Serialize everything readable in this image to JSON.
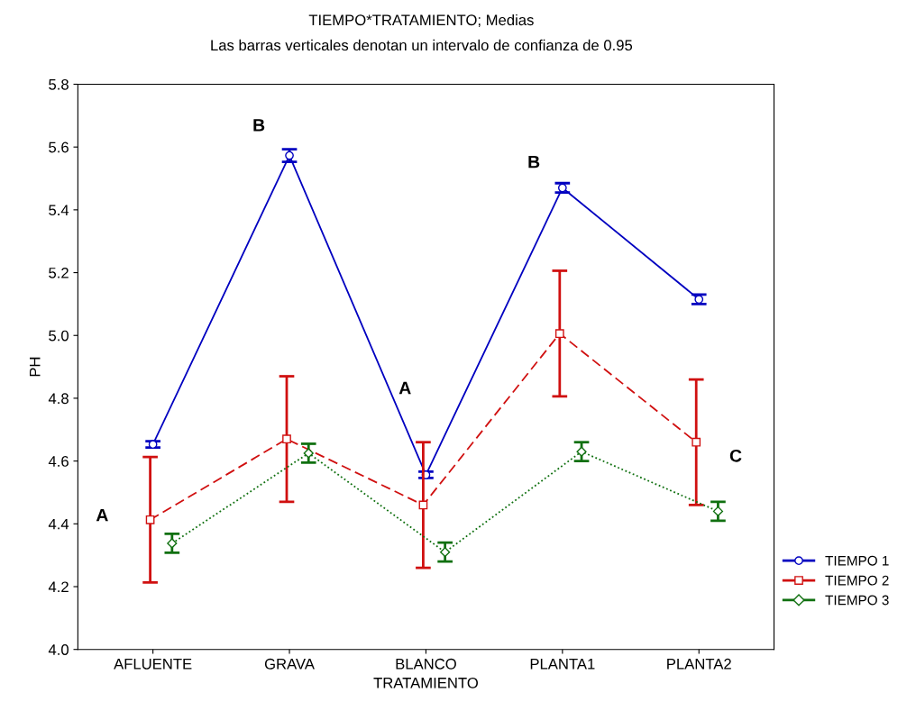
{
  "chart_data": {
    "type": "line",
    "title": "TIEMPO*TRATAMIENTO; Medias",
    "subtitle": "Las barras verticales denotan un intervalo de confianza de 0.95",
    "xlabel": "TRATAMIENTO",
    "ylabel": "PH",
    "categories": [
      "AFLUENTE",
      "GRAVA",
      "BLANCO",
      "PLANTA1",
      "PLANTA2"
    ],
    "series": [
      {
        "name": "TIEMPO 1",
        "color": "#0000c0",
        "values": [
          4.653,
          5.573,
          4.556,
          5.47,
          5.115
        ],
        "errors": [
          0.01,
          0.02,
          0.01,
          0.015,
          0.015
        ],
        "marker": "circle",
        "line_style": "solid"
      },
      {
        "name": "TIEMPO 2",
        "color": "#d01010",
        "values": [
          4.413,
          4.67,
          4.46,
          5.006,
          4.66
        ],
        "errors": [
          0.2,
          0.2,
          0.2,
          0.2,
          0.2
        ],
        "marker": "square",
        "line_style": "dashed"
      },
      {
        "name": "TIEMPO 3",
        "color": "#107010",
        "values": [
          4.338,
          4.625,
          4.31,
          4.63,
          4.44
        ],
        "errors": [
          0.03,
          0.03,
          0.03,
          0.03,
          0.03
        ],
        "marker": "diamond",
        "line_style": "dotted"
      }
    ],
    "annotations": [
      "A",
      "B",
      "A",
      "B",
      "C"
    ],
    "ylim": [
      4.0,
      5.8
    ],
    "yticks": [
      {
        "value": 4.0,
        "label": "4.0"
      },
      4.2,
      4.4,
      4.6,
      4.8,
      {
        "value": 5.0,
        "label": "5.0"
      },
      5.2,
      5.4,
      5.6,
      5.8
    ],
    "grid": false,
    "legend": "right"
  }
}
